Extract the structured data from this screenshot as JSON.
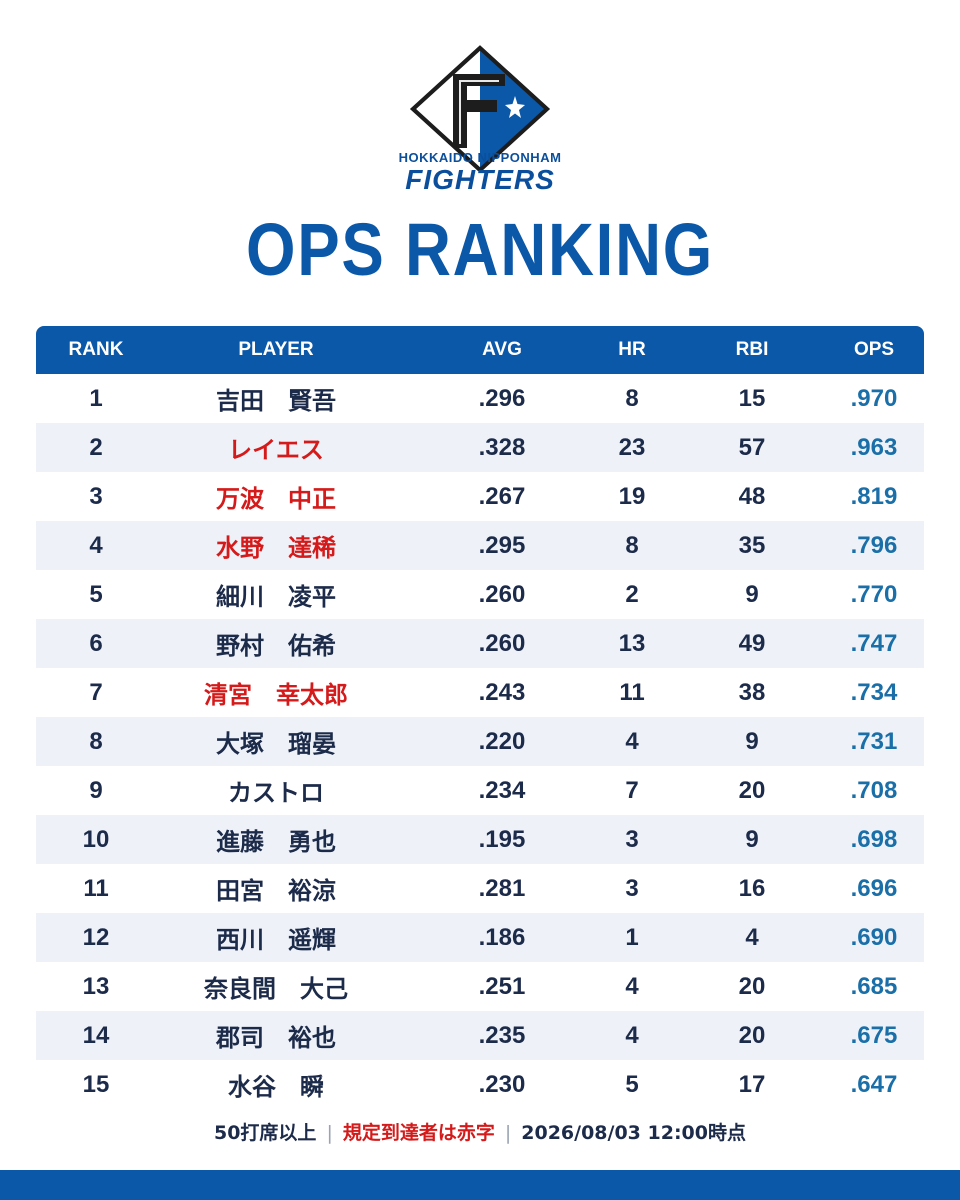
{
  "brand": {
    "line1": "HOKKAIDO NIPPONHAM",
    "line2": "FIGHTERS",
    "colors": {
      "primary": "#0b57a8",
      "dark": "#1d2b4a",
      "red": "#d41a1a",
      "ops": "#1a6fa8"
    }
  },
  "title": "OPS RANKING",
  "table": {
    "headers": {
      "rank": "RANK",
      "player": "PLAYER",
      "avg": "AVG",
      "hr": "HR",
      "rbi": "RBI",
      "ops": "OPS"
    },
    "rows": [
      {
        "rank": "1",
        "player": "吉田　賢吾",
        "avg": ".296",
        "hr": "8",
        "rbi": "15",
        "ops": ".970",
        "qualified": false
      },
      {
        "rank": "2",
        "player": "レイエス",
        "avg": ".328",
        "hr": "23",
        "rbi": "57",
        "ops": ".963",
        "qualified": true
      },
      {
        "rank": "3",
        "player": "万波　中正",
        "avg": ".267",
        "hr": "19",
        "rbi": "48",
        "ops": ".819",
        "qualified": true
      },
      {
        "rank": "4",
        "player": "水野　達稀",
        "avg": ".295",
        "hr": "8",
        "rbi": "35",
        "ops": ".796",
        "qualified": true
      },
      {
        "rank": "5",
        "player": "細川　凌平",
        "avg": ".260",
        "hr": "2",
        "rbi": "9",
        "ops": ".770",
        "qualified": false
      },
      {
        "rank": "6",
        "player": "野村　佑希",
        "avg": ".260",
        "hr": "13",
        "rbi": "49",
        "ops": ".747",
        "qualified": false
      },
      {
        "rank": "7",
        "player": "清宮　幸太郎",
        "avg": ".243",
        "hr": "11",
        "rbi": "38",
        "ops": ".734",
        "qualified": true
      },
      {
        "rank": "8",
        "player": "大塚　瑠晏",
        "avg": ".220",
        "hr": "4",
        "rbi": "9",
        "ops": ".731",
        "qualified": false
      },
      {
        "rank": "9",
        "player": "カストロ",
        "avg": ".234",
        "hr": "7",
        "rbi": "20",
        "ops": ".708",
        "qualified": false
      },
      {
        "rank": "10",
        "player": "進藤　勇也",
        "avg": ".195",
        "hr": "3",
        "rbi": "9",
        "ops": ".698",
        "qualified": false
      },
      {
        "rank": "11",
        "player": "田宮　裕涼",
        "avg": ".281",
        "hr": "3",
        "rbi": "16",
        "ops": ".696",
        "qualified": false
      },
      {
        "rank": "12",
        "player": "西川　遥輝",
        "avg": ".186",
        "hr": "1",
        "rbi": "4",
        "ops": ".690",
        "qualified": false
      },
      {
        "rank": "13",
        "player": "奈良間　大己",
        "avg": ".251",
        "hr": "4",
        "rbi": "20",
        "ops": ".685",
        "qualified": false
      },
      {
        "rank": "14",
        "player": "郡司　裕也",
        "avg": ".235",
        "hr": "4",
        "rbi": "20",
        "ops": ".675",
        "qualified": false
      },
      {
        "rank": "15",
        "player": "水谷　瞬",
        "avg": ".230",
        "hr": "5",
        "rbi": "17",
        "ops": ".647",
        "qualified": false
      }
    ]
  },
  "footer": {
    "min_pa": "50打席以上",
    "separator": "|",
    "legend": "規定到達者は赤字",
    "timestamp": "2026/08/03 12:00時点"
  }
}
